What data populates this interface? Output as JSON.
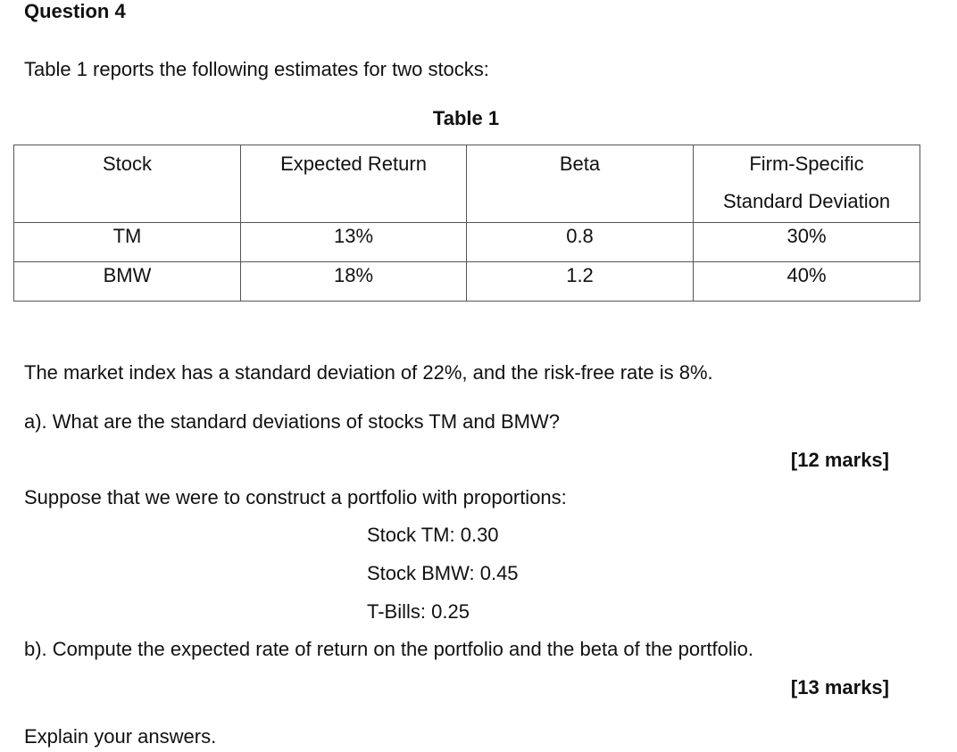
{
  "heading": "Question 4",
  "intro": "Table 1 reports the following estimates for two stocks:",
  "table": {
    "caption": "Table 1",
    "headers": [
      {
        "line1": "Stock",
        "line2": ""
      },
      {
        "line1": "Expected Return",
        "line2": ""
      },
      {
        "line1": "Beta",
        "line2": ""
      },
      {
        "line1": "Firm-Specific",
        "line2": "Standard Deviation"
      }
    ],
    "rows": [
      [
        "TM",
        "13%",
        "0.8",
        "30%"
      ],
      [
        "BMW",
        "18%",
        "1.2",
        "40%"
      ]
    ]
  },
  "market_text": "The market index has a standard deviation of 22%, and the risk-free rate is 8%.",
  "question_a": "a). What are the standard deviations of stocks TM and BMW?",
  "marks_a": "[12 marks]",
  "suppose_text": "Suppose that we were to construct a portfolio with proportions:",
  "proportions": [
    "Stock TM: 0.30",
    "Stock BMW: 0.45",
    "T-Bills: 0.25"
  ],
  "question_b": "b). Compute the expected rate of return on the portfolio and the beta of the portfolio.",
  "marks_b": "[13 marks]",
  "closing": "Explain your answers."
}
